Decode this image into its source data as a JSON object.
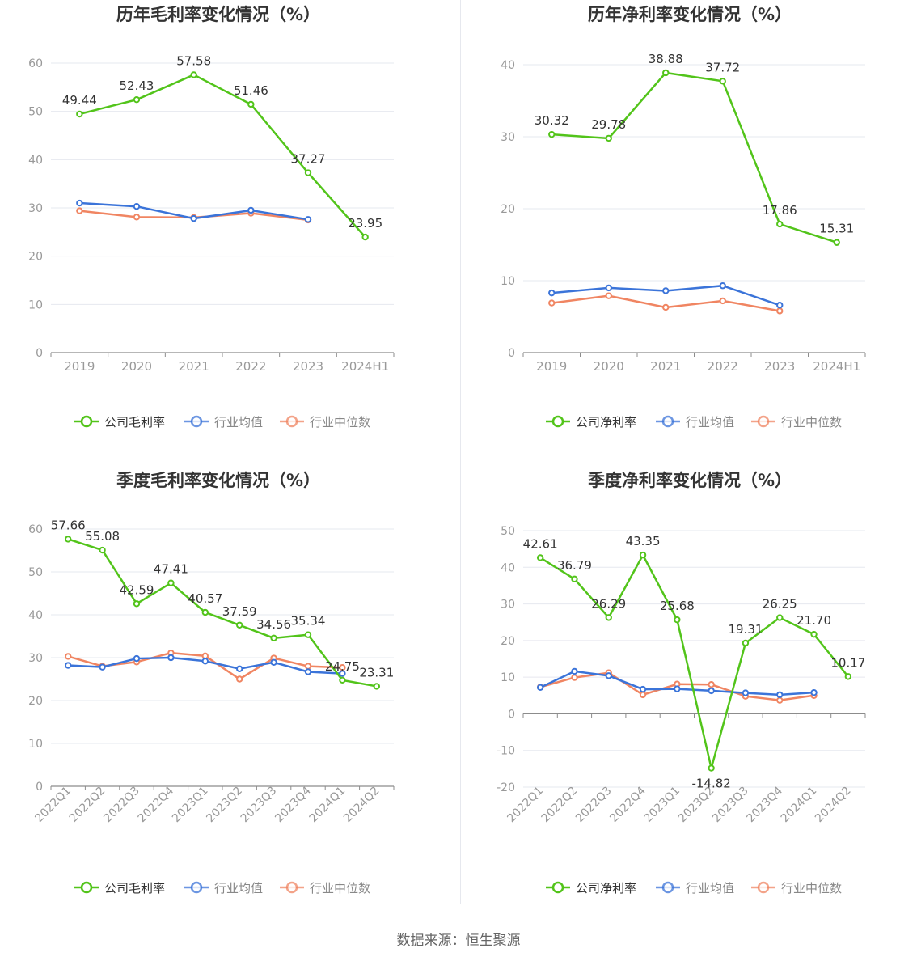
{
  "source_text": "数据来源：恒生聚源",
  "colors": {
    "company": "#52c41a",
    "avg": "#3b74d9",
    "median": "#f08562",
    "grid": "#e6e8ef",
    "axis": "#8c8c8c",
    "label": "#333333",
    "tick": "#999999"
  },
  "chart_data": [
    {
      "type": "line",
      "title": "历年毛利率变化情况（%）",
      "categories": [
        "2019",
        "2020",
        "2021",
        "2022",
        "2023",
        "2024H1"
      ],
      "ylim": [
        0,
        60
      ],
      "yticks": [
        0,
        10,
        20,
        30,
        40,
        50,
        60
      ],
      "grid": true,
      "legend_position": "bottom-center",
      "rotate_x_labels": false,
      "series": [
        {
          "name": "公司毛利率",
          "role": "company",
          "values": [
            49.44,
            52.43,
            57.58,
            51.46,
            37.27,
            23.95
          ],
          "labels": [
            "49.44",
            "52.43",
            "57.58",
            "51.46",
            "37.27",
            "23.95"
          ]
        },
        {
          "name": "行业均值",
          "role": "avg",
          "values": [
            31.0,
            30.3,
            27.8,
            29.5,
            27.6,
            null
          ]
        },
        {
          "name": "行业中位数",
          "role": "median",
          "values": [
            29.4,
            28.1,
            28.0,
            28.9,
            27.5,
            null
          ]
        }
      ]
    },
    {
      "type": "line",
      "title": "历年净利率变化情况（%）",
      "categories": [
        "2019",
        "2020",
        "2021",
        "2022",
        "2023",
        "2024H1"
      ],
      "ylim": [
        0,
        40
      ],
      "yticks": [
        0,
        10,
        20,
        30,
        40
      ],
      "grid": true,
      "legend_position": "bottom-center",
      "rotate_x_labels": false,
      "series": [
        {
          "name": "公司净利率",
          "role": "company",
          "values": [
            30.32,
            29.78,
            38.88,
            37.72,
            17.86,
            15.31
          ],
          "labels": [
            "30.32",
            "29.78",
            "38.88",
            "37.72",
            "17.86",
            "15.31"
          ]
        },
        {
          "name": "行业均值",
          "role": "avg",
          "values": [
            8.3,
            9.0,
            8.6,
            9.3,
            6.6,
            null
          ]
        },
        {
          "name": "行业中位数",
          "role": "median",
          "values": [
            6.9,
            7.9,
            6.3,
            7.2,
            5.8,
            null
          ]
        }
      ]
    },
    {
      "type": "line",
      "title": "季度毛利率变化情况（%）",
      "categories": [
        "2022Q1",
        "2022Q2",
        "2022Q3",
        "2022Q4",
        "2023Q1",
        "2023Q2",
        "2023Q3",
        "2023Q4",
        "2024Q1",
        "2024Q2"
      ],
      "ylim": [
        0,
        60
      ],
      "yticks": [
        0,
        10,
        20,
        30,
        40,
        50,
        60
      ],
      "grid": true,
      "legend_position": "bottom-center",
      "rotate_x_labels": true,
      "series": [
        {
          "name": "公司毛利率",
          "role": "company",
          "values": [
            57.66,
            55.08,
            42.59,
            47.41,
            40.57,
            37.59,
            34.56,
            35.34,
            24.75,
            23.31
          ],
          "labels": [
            "57.66",
            "55.08",
            "42.59",
            "47.41",
            "40.57",
            "37.59",
            "34.56",
            "35.34",
            "24.75",
            "23.31"
          ]
        },
        {
          "name": "行业均值",
          "role": "avg",
          "values": [
            28.2,
            27.8,
            29.8,
            30.0,
            29.2,
            27.4,
            28.9,
            26.7,
            26.3,
            null
          ]
        },
        {
          "name": "行业中位数",
          "role": "median",
          "values": [
            30.3,
            28.0,
            29.0,
            31.1,
            30.4,
            25.0,
            29.9,
            28.0,
            27.7,
            null
          ]
        }
      ]
    },
    {
      "type": "line",
      "title": "季度净利率变化情况（%）",
      "categories": [
        "2022Q1",
        "2022Q2",
        "2022Q3",
        "2022Q4",
        "2023Q1",
        "2023Q2",
        "2023Q3",
        "2023Q4",
        "2024Q1",
        "2024Q2"
      ],
      "ylim": [
        -20,
        50
      ],
      "yticks": [
        -20,
        -10,
        0,
        10,
        20,
        30,
        40,
        50
      ],
      "grid": true,
      "legend_position": "bottom-center",
      "rotate_x_labels": true,
      "series": [
        {
          "name": "公司净利率",
          "role": "company",
          "values": [
            42.61,
            36.79,
            26.29,
            43.35,
            25.68,
            -14.82,
            19.31,
            26.25,
            21.7,
            10.17
          ],
          "labels": [
            "42.61",
            "36.79",
            "26.29",
            "43.35",
            "25.68",
            "-14.82",
            "19.31",
            "26.25",
            "21.70",
            "10.17"
          ]
        },
        {
          "name": "行业均值",
          "role": "avg",
          "values": [
            7.2,
            11.6,
            10.4,
            6.7,
            6.8,
            6.3,
            5.7,
            5.2,
            5.8,
            null
          ]
        },
        {
          "name": "行业中位数",
          "role": "median",
          "values": [
            7.3,
            9.9,
            11.2,
            5.2,
            8.1,
            8.0,
            4.8,
            3.7,
            5.0,
            null
          ]
        }
      ]
    }
  ]
}
